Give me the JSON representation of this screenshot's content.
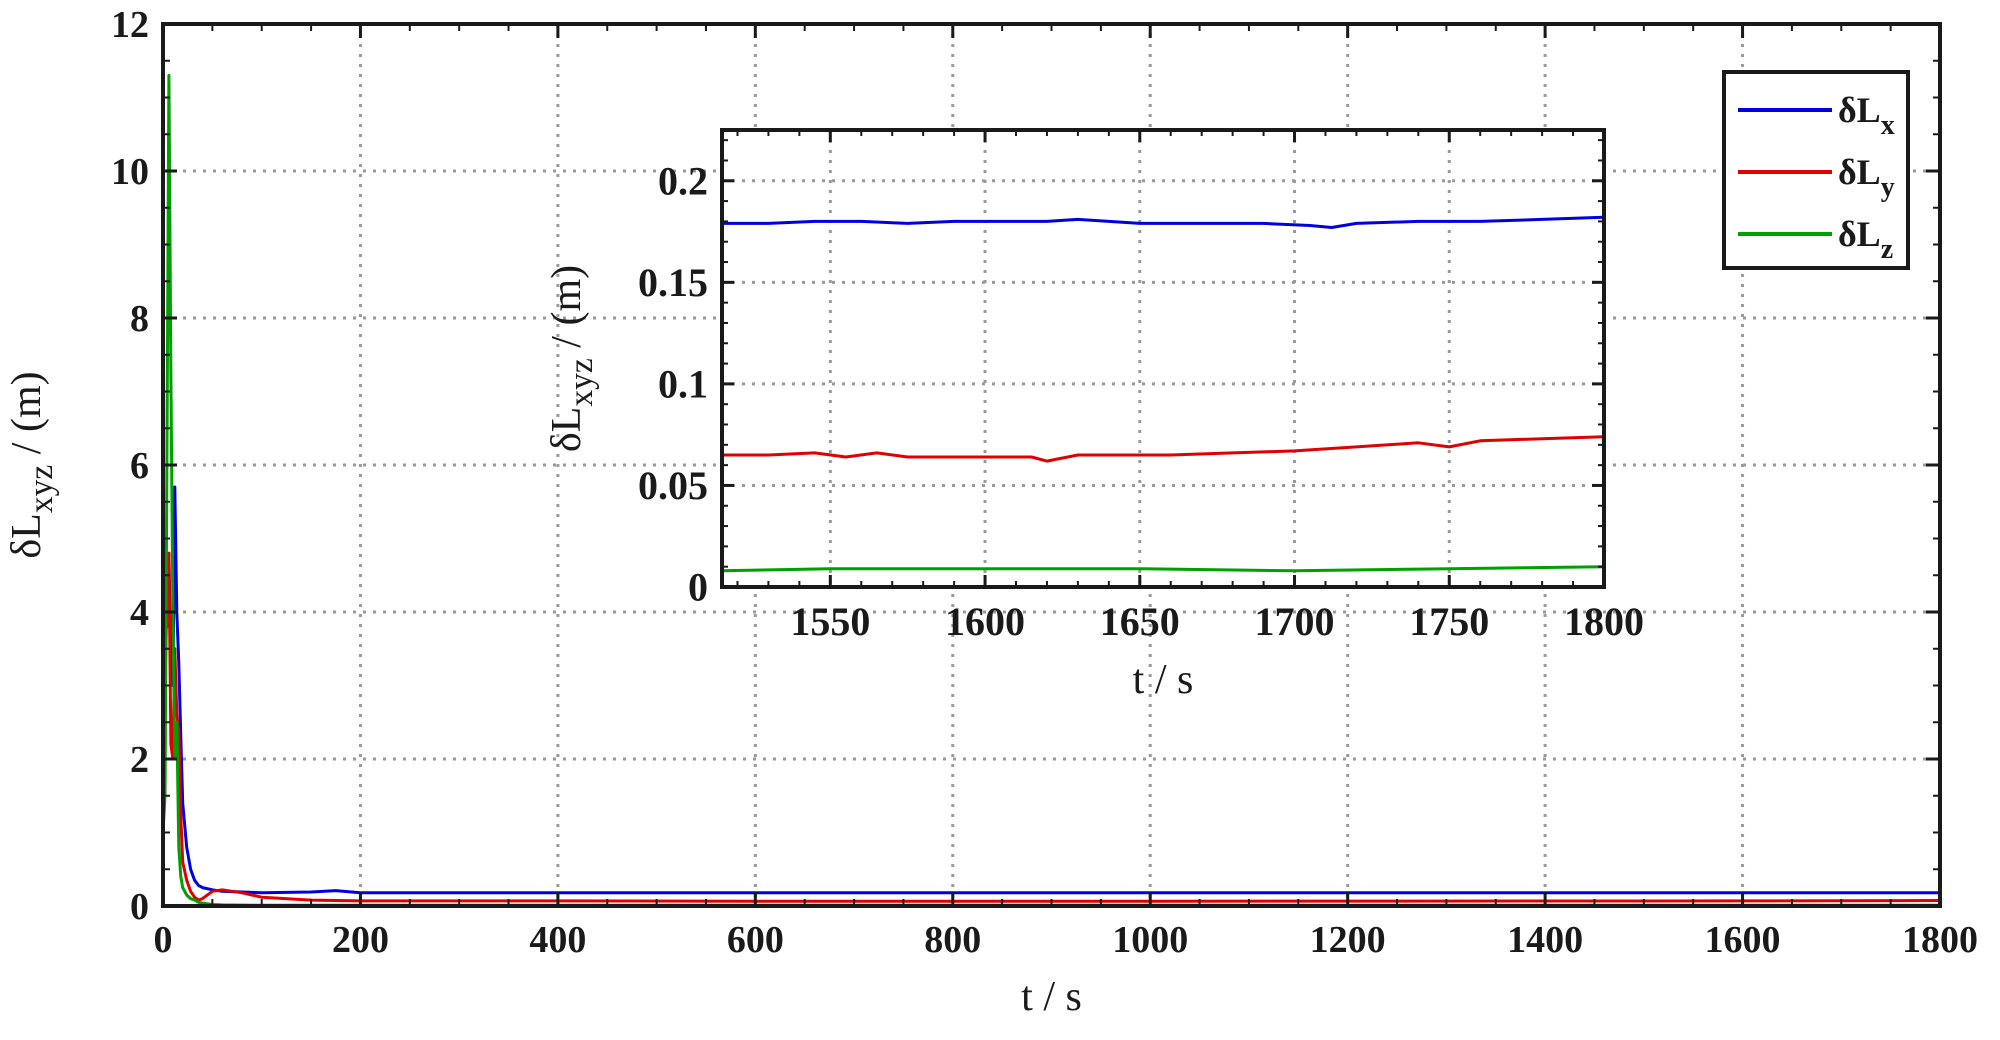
{
  "chart_data": [
    {
      "type": "line",
      "id": "main",
      "xlabel": "t / s",
      "ylabel": {
        "base": "δL",
        "sub": "xyz",
        "tail": " / (m)"
      },
      "xlim": [
        0,
        1800
      ],
      "ylim": [
        0,
        12
      ],
      "xticks": [
        0,
        200,
        400,
        600,
        800,
        1000,
        1200,
        1400,
        1600,
        1800
      ],
      "yticks": [
        0,
        2,
        4,
        6,
        8,
        10,
        12
      ],
      "grid": true,
      "legend": {
        "placement": "top-right",
        "entries": [
          {
            "base": "δL",
            "sub": "x",
            "color": "#0000e0"
          },
          {
            "base": "δL",
            "sub": "y",
            "color": "#e00000"
          },
          {
            "base": "δL",
            "sub": "z",
            "color": "#00a000"
          }
        ]
      },
      "series": [
        {
          "color": "#0000e0",
          "x": [
            0,
            2,
            4,
            6,
            8,
            10,
            12,
            14,
            16,
            18,
            20,
            24,
            28,
            32,
            36,
            40,
            50,
            60,
            80,
            100,
            150,
            175,
            200,
            300,
            400,
            600,
            800,
            1000,
            1200,
            1400,
            1600,
            1800
          ],
          "y": [
            2.0,
            3.0,
            4.2,
            4.8,
            3.2,
            3.0,
            5.7,
            4.0,
            3.3,
            2.3,
            1.4,
            0.8,
            0.5,
            0.35,
            0.28,
            0.25,
            0.22,
            0.2,
            0.19,
            0.18,
            0.19,
            0.21,
            0.18,
            0.18,
            0.18,
            0.18,
            0.18,
            0.18,
            0.18,
            0.18,
            0.18,
            0.18
          ]
        },
        {
          "color": "#e00000",
          "x": [
            0,
            2,
            4,
            6,
            8,
            10,
            12,
            14,
            16,
            18,
            20,
            24,
            28,
            32,
            36,
            40,
            50,
            60,
            70,
            80,
            90,
            100,
            150,
            200,
            400,
            600,
            800,
            1000,
            1200,
            1400,
            1600,
            1800
          ],
          "y": [
            4.0,
            4.3,
            3.8,
            4.8,
            2.2,
            2.0,
            3.5,
            2.6,
            2.4,
            1.2,
            0.6,
            0.35,
            0.2,
            0.12,
            0.08,
            0.1,
            0.2,
            0.22,
            0.2,
            0.18,
            0.15,
            0.12,
            0.08,
            0.07,
            0.07,
            0.065,
            0.065,
            0.065,
            0.066,
            0.068,
            0.07,
            0.075
          ]
        },
        {
          "color": "#00a000",
          "x": [
            0,
            2,
            4,
            6,
            8,
            10,
            12,
            14,
            16,
            18,
            20,
            24,
            28,
            32,
            36,
            40,
            50,
            60,
            80,
            100,
            200,
            400,
            600,
            800,
            1000,
            1200,
            1400,
            1600,
            1800
          ],
          "y": [
            1.0,
            1.5,
            6.0,
            11.3,
            7.2,
            4.0,
            2.0,
            2.5,
            0.8,
            0.4,
            0.25,
            0.15,
            0.1,
            0.08,
            0.05,
            0.04,
            0.02,
            0.015,
            0.012,
            0.01,
            0.01,
            0.01,
            0.01,
            0.01,
            0.01,
            0.01,
            0.01,
            0.01,
            0.01
          ]
        }
      ]
    },
    {
      "type": "line",
      "id": "inset",
      "xlabel": "t / s",
      "ylabel": {
        "base": "δL",
        "sub": "xyz",
        "tail": " / (m)"
      },
      "xlim": [
        1515,
        1800
      ],
      "ylim": [
        0,
        0.225
      ],
      "xticks": [
        1550,
        1600,
        1650,
        1700,
        1750,
        1800
      ],
      "yticks": [
        0,
        0.05,
        0.1,
        0.15,
        0.2
      ],
      "ytick_labels": [
        "0",
        "0.05",
        "0.1",
        "0.15",
        "0.2"
      ],
      "grid": true,
      "series": [
        {
          "color": "#0000e0",
          "x": [
            1515,
            1530,
            1545,
            1560,
            1575,
            1590,
            1605,
            1620,
            1630,
            1640,
            1650,
            1670,
            1690,
            1705,
            1712,
            1720,
            1740,
            1760,
            1780,
            1800
          ],
          "y": [
            0.179,
            0.179,
            0.18,
            0.18,
            0.179,
            0.18,
            0.18,
            0.18,
            0.181,
            0.18,
            0.179,
            0.179,
            0.179,
            0.178,
            0.177,
            0.179,
            0.18,
            0.18,
            0.181,
            0.182
          ]
        },
        {
          "color": "#e00000",
          "x": [
            1515,
            1530,
            1545,
            1555,
            1565,
            1575,
            1590,
            1605,
            1615,
            1620,
            1630,
            1645,
            1660,
            1680,
            1700,
            1720,
            1740,
            1750,
            1760,
            1780,
            1800
          ],
          "y": [
            0.065,
            0.065,
            0.066,
            0.064,
            0.066,
            0.064,
            0.064,
            0.064,
            0.064,
            0.062,
            0.065,
            0.065,
            0.065,
            0.066,
            0.067,
            0.069,
            0.071,
            0.069,
            0.072,
            0.073,
            0.074
          ]
        },
        {
          "color": "#00a000",
          "x": [
            1515,
            1550,
            1600,
            1650,
            1700,
            1750,
            1800
          ],
          "y": [
            0.008,
            0.009,
            0.009,
            0.009,
            0.008,
            0.009,
            0.01
          ]
        }
      ]
    }
  ]
}
